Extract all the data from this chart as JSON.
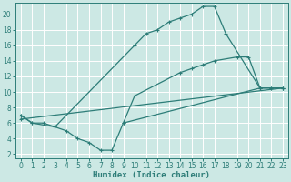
{
  "bg_color": "#cce8e4",
  "line_color": "#2d7d78",
  "grid_white": "#ffffff",
  "grid_pink": "#e8b4b4",
  "curve1_x": [
    0,
    1,
    2,
    3,
    10,
    11,
    12,
    13,
    14,
    15,
    16,
    17,
    18,
    21,
    22,
    23
  ],
  "curve1_y": [
    7,
    6,
    6,
    5.5,
    16,
    17.5,
    18,
    19,
    19.5,
    20,
    21,
    21,
    17.5,
    10.5,
    10.5,
    10.5
  ],
  "curve2_x": [
    0,
    1,
    3,
    4,
    5,
    6,
    7,
    8,
    9,
    21,
    22,
    23
  ],
  "curve2_y": [
    7,
    6,
    5.5,
    5,
    4,
    3.5,
    2.5,
    2.5,
    6,
    10.5,
    10.5,
    10.5
  ],
  "curve2b_x": [
    9,
    10,
    14,
    15,
    16,
    17,
    19,
    20,
    21
  ],
  "curve2b_y": [
    6,
    9.5,
    12.5,
    13,
    13.5,
    14,
    14.5,
    14.5,
    10.5
  ],
  "curve3_x": [
    0,
    23
  ],
  "curve3_y": [
    6.5,
    10.5
  ],
  "xlim": [
    -0.5,
    23.5
  ],
  "ylim": [
    1.5,
    21.5
  ],
  "xlabel": "Humidex (Indice chaleur)",
  "xticks": [
    0,
    1,
    2,
    3,
    4,
    5,
    6,
    7,
    8,
    9,
    10,
    11,
    12,
    13,
    14,
    15,
    16,
    17,
    18,
    19,
    20,
    21,
    22,
    23
  ],
  "yticks": [
    2,
    4,
    6,
    8,
    10,
    12,
    14,
    16,
    18,
    20
  ],
  "axis_fontsize": 6.5,
  "tick_fontsize": 5.5,
  "marker_size": 2.5,
  "line_width": 0.9
}
